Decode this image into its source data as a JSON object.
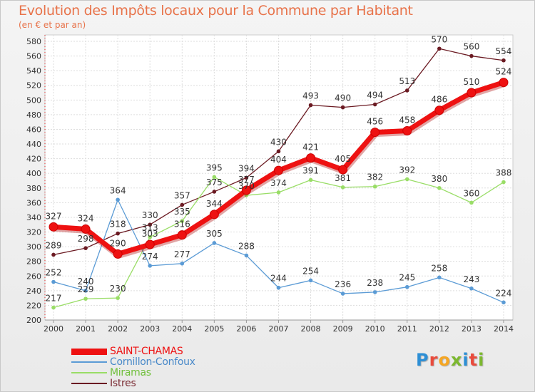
{
  "header": {
    "title": "Evolution des Impôts locaux pour la Commune par Habitant",
    "subtitle": "(en € et par an)"
  },
  "logo": {
    "letters": [
      "P",
      "r",
      "o",
      "x",
      "i",
      "t",
      "i"
    ],
    "colors": [
      "#2d8fd5",
      "#e94b3c",
      "#f5a623",
      "#7cb82f",
      "#2d8fd5",
      "#e94b3c",
      "#7cb82f"
    ]
  },
  "chart_data": {
    "type": "line",
    "x": [
      "2000",
      "2001",
      "2002",
      "2003",
      "2004",
      "2005",
      "2006",
      "2007",
      "2008",
      "2009",
      "2010",
      "2011",
      "2012",
      "2013",
      "2014"
    ],
    "ylim": [
      200,
      580
    ],
    "yticks": [
      200,
      220,
      240,
      260,
      280,
      300,
      320,
      340,
      360,
      380,
      400,
      420,
      440,
      460,
      480,
      500,
      520,
      540,
      560,
      580
    ],
    "grid": true,
    "legend_position": "bottom-left",
    "series": [
      {
        "name": "Istres",
        "color": "#6b1a22",
        "values": [
          289,
          298,
          318,
          330,
          357,
          375,
          394,
          430,
          493,
          490,
          494,
          513,
          570,
          560,
          554
        ]
      },
      {
        "name": "Miramas",
        "color": "#99dd66",
        "values": [
          217,
          229,
          230,
          313,
          335,
          395,
          370,
          374,
          391,
          381,
          382,
          392,
          380,
          360,
          388
        ]
      },
      {
        "name": "Cornillon-Confoux",
        "color": "#5b9bd5",
        "values": [
          252,
          240,
          364,
          274,
          277,
          305,
          288,
          244,
          254,
          236,
          238,
          245,
          258,
          243,
          224
        ]
      },
      {
        "name": "SAINT-CHAMAS",
        "color": "#ee1111",
        "values": [
          327,
          324,
          290,
          303,
          316,
          344,
          377,
          404,
          421,
          405,
          456,
          458,
          486,
          510,
          524
        ]
      }
    ],
    "legend_order": [
      "SAINT-CHAMAS",
      "Cornillon-Confoux",
      "Miramas",
      "Istres"
    ]
  }
}
